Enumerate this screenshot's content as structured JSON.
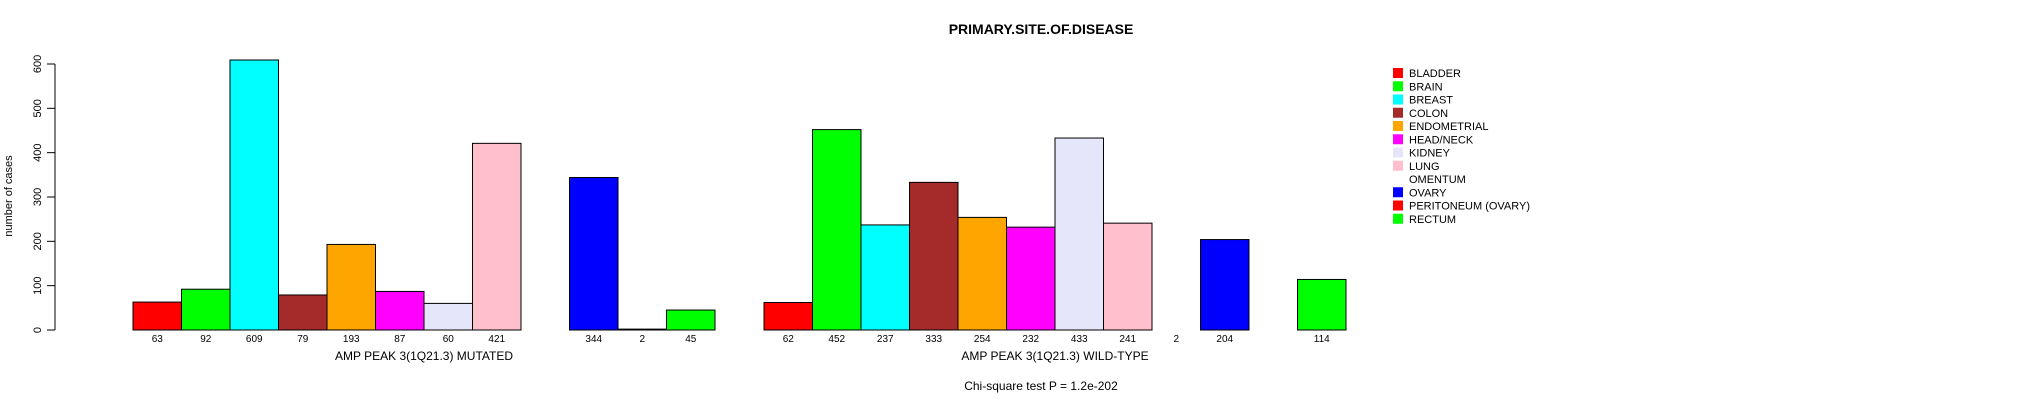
{
  "chart_data": {
    "type": "bar",
    "title": "PRIMARY.SITE.OF.DISEASE",
    "ylabel": "number of cases",
    "ylim": [
      0,
      609
    ],
    "yticks": [
      "0",
      "100",
      "200",
      "300",
      "400",
      "500",
      "600"
    ],
    "categories": [
      "BLADDER",
      "BRAIN",
      "BREAST",
      "COLON",
      "ENDOMETRIAL",
      "HEAD/NECK",
      "KIDNEY",
      "LUNG",
      "OMENTUM",
      "OVARY",
      "PERITONEUM (OVARY)",
      "RECTUM"
    ],
    "colors": [
      "#ff0000",
      "#00ff00",
      "#00ffff",
      "#a52a2a",
      "#ffa500",
      "#ff00ff",
      "#e6e6fa",
      "#ffc0cb",
      "#ffffff",
      "#0000ff",
      "#ff0000",
      "#00ff00"
    ],
    "groups": [
      {
        "name": "AMP PEAK  3(1Q21.3) MUTATED",
        "values": [
          63,
          92,
          609,
          79,
          193,
          87,
          60,
          421,
          0,
          344,
          2,
          45
        ],
        "labels": [
          "63",
          "92",
          "609",
          "79",
          "193",
          "87",
          "60",
          "421",
          "",
          "344",
          "2",
          "45"
        ]
      },
      {
        "name": "AMP PEAK  3(1Q21.3) WILD-TYPE",
        "values": [
          62,
          452,
          237,
          333,
          254,
          232,
          433,
          241,
          2,
          204,
          0,
          114
        ],
        "labels": [
          "62",
          "452",
          "237",
          "333",
          "254",
          "232",
          "433",
          "241",
          "2",
          "204",
          "",
          "114"
        ]
      }
    ],
    "legend_position": "top-right",
    "footnote": "Chi-square test P = 1.2e-202"
  }
}
